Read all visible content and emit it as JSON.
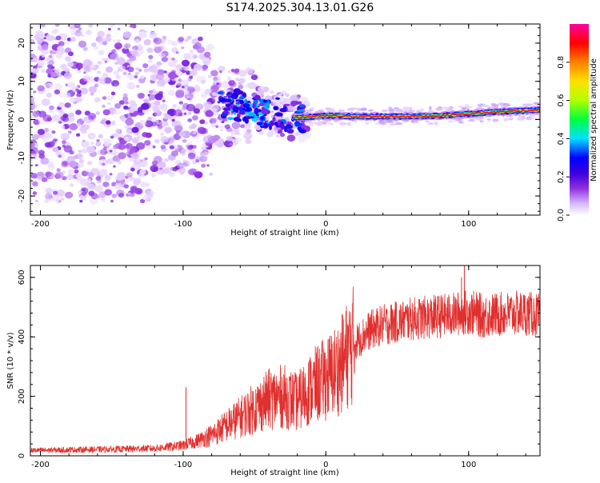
{
  "title": "S174.2025.304.13.01.G26",
  "colors": {
    "background": "#ffffff",
    "axes": "#000000",
    "snr_line": "#e0302e",
    "colormap": [
      "#ffffff",
      "#d8b8ff",
      "#9030e0",
      "#3a00e0",
      "#0000ff",
      "#00e0ff",
      "#00ff40",
      "#b0ff00",
      "#ffe000",
      "#ff8000",
      "#ff0000",
      "#ff00a0"
    ]
  },
  "chart_data": [
    {
      "type": "heatmap",
      "title": "",
      "xlabel": "Height of straight line (km)",
      "ylabel": "Frequency (Hz)",
      "xlim": [
        -207,
        150
      ],
      "ylim": [
        -25,
        25
      ],
      "xticks": [
        {
          "value": -200,
          "label": "-200"
        },
        {
          "value": -100,
          "label": "-100"
        },
        {
          "value": 0,
          "label": "0"
        },
        {
          "value": 100,
          "label": "100"
        }
      ],
      "yticks": [
        {
          "value": -20,
          "label": "-20"
        },
        {
          "value": -10,
          "label": "-10"
        },
        {
          "value": 0,
          "label": "0"
        },
        {
          "value": 10,
          "label": "10"
        },
        {
          "value": 20,
          "label": "20"
        }
      ],
      "colorbar": {
        "label": "Normalized spectral amplitude",
        "range": [
          0,
          1
        ],
        "ticks": [
          {
            "value": 0.0,
            "label": "0.0"
          },
          {
            "value": 0.2,
            "label": "0.2"
          },
          {
            "value": 0.4,
            "label": "0.4"
          },
          {
            "value": 0.6,
            "label": "0.6"
          },
          {
            "value": 0.8,
            "label": "0.8"
          }
        ]
      },
      "ridge": {
        "description": "dominant frequency ridge",
        "points": [
          [
            -80,
            3.5
          ],
          [
            -60,
            3.5
          ],
          [
            -40,
            2.0
          ],
          [
            -20,
            0.5
          ],
          [
            0,
            1.0
          ],
          [
            20,
            0.8
          ],
          [
            50,
            0.8
          ],
          [
            80,
            1.0
          ],
          [
            100,
            1.5
          ],
          [
            120,
            2.0
          ],
          [
            150,
            2.5
          ]
        ]
      },
      "noise_region": {
        "x_range": [
          -207,
          -20
        ],
        "y_range": [
          -25,
          25
        ]
      }
    },
    {
      "type": "line",
      "title": "",
      "xlabel": "Height of straight line (km)",
      "ylabel": "SNR (10 * v/v)",
      "xlim": [
        -207,
        150
      ],
      "ylim": [
        0,
        640
      ],
      "xticks": [
        {
          "value": -200,
          "label": "-200"
        },
        {
          "value": -100,
          "label": "-100"
        },
        {
          "value": 0,
          "label": "0"
        },
        {
          "value": 100,
          "label": "100"
        }
      ],
      "yticks": [
        {
          "value": 0,
          "label": "0"
        },
        {
          "value": 200,
          "label": "200"
        },
        {
          "value": 400,
          "label": "400"
        },
        {
          "value": 600,
          "label": "600"
        }
      ],
      "series": [
        {
          "name": "SNR",
          "x": [
            -207,
            -180,
            -150,
            -120,
            -100,
            -90,
            -80,
            -70,
            -60,
            -50,
            -40,
            -30,
            -20,
            -10,
            0,
            10,
            20,
            30,
            40,
            50,
            60,
            70,
            80,
            90,
            100,
            110,
            120,
            130,
            140,
            150
          ],
          "y": [
            18,
            20,
            22,
            25,
            35,
            50,
            70,
            100,
            130,
            160,
            190,
            200,
            180,
            230,
            260,
            300,
            380,
            420,
            440,
            450,
            460,
            465,
            470,
            475,
            485,
            470,
            475,
            478,
            480,
            470
          ],
          "spikes": [
            [
              -98,
              230
            ],
            [
              97,
              640
            ],
            [
              95,
              600
            ]
          ]
        }
      ]
    }
  ]
}
